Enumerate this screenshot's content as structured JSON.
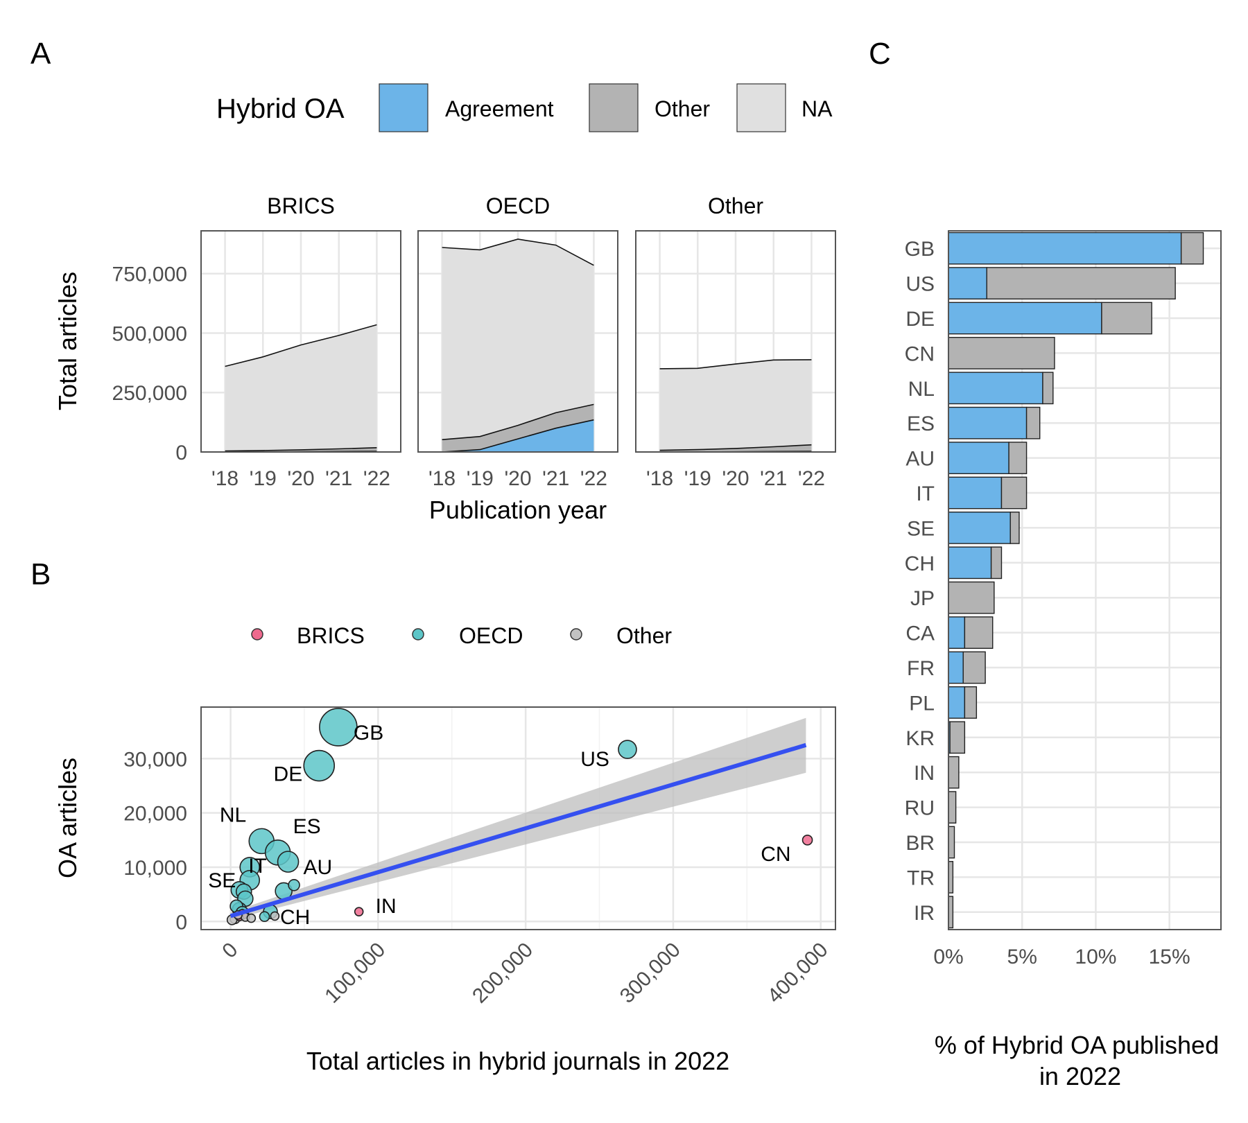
{
  "panels": {
    "a": "A",
    "b": "B",
    "c": "C"
  },
  "colors": {
    "agreement": "#6cb4e8",
    "other_oa": "#b3b3b3",
    "na": "#e0e0e0",
    "brics": "#ee6a8e",
    "oecd": "#5dc6c8",
    "other_country": "#c2c2c2",
    "trend": "#3550f0",
    "ribbon": "#bdbdbd"
  },
  "chart_data": [
    {
      "id": "A",
      "type": "area",
      "legend": {
        "title": "Hybrid OA",
        "entries": [
          "Agreement",
          "Other",
          "NA"
        ],
        "placement": "top"
      },
      "facets": [
        "BRICS",
        "OECD",
        "Other"
      ],
      "x": [
        2018,
        2019,
        2020,
        2021,
        2022
      ],
      "xticklabels": [
        "'18",
        "'19",
        "'20",
        "'21",
        "'22"
      ],
      "xlabel": "Publication year",
      "ylabel": "Total articles",
      "ylim": [
        0,
        930000
      ],
      "yticks": [
        0,
        250000,
        500000,
        750000
      ],
      "yticklabels": [
        "0",
        "250,000",
        "500,000",
        "750,000"
      ],
      "grid": true,
      "stacks": {
        "BRICS": {
          "agreement": [
            0,
            0,
            1000,
            2000,
            3000
          ],
          "other": [
            4000,
            6000,
            8000,
            11000,
            15000
          ],
          "na": [
            356000,
            394000,
            441000,
            477000,
            517000
          ]
        },
        "OECD": {
          "agreement": [
            0,
            10000,
            55000,
            100000,
            135000
          ],
          "other": [
            52000,
            55000,
            57000,
            65000,
            65000
          ],
          "na": [
            808000,
            785000,
            783000,
            705000,
            585000
          ]
        },
        "Other": {
          "agreement": [
            0,
            0,
            1000,
            2000,
            3000
          ],
          "other": [
            7000,
            10000,
            14000,
            20000,
            27000
          ],
          "na": [
            343000,
            342000,
            355000,
            365000,
            358000
          ]
        }
      }
    },
    {
      "id": "B",
      "type": "scatter",
      "legend": {
        "entries": [
          "BRICS",
          "OECD",
          "Other"
        ],
        "placement": "top"
      },
      "xlabel": "Total articles in hybrid journals in 2022",
      "ylabel": "OA articles",
      "xlim": [
        -20000,
        410000
      ],
      "ylim": [
        -1500,
        39500
      ],
      "xticks": [
        0,
        100000,
        200000,
        300000,
        400000
      ],
      "xticklabels": [
        "0",
        "100,000",
        "200,000",
        "300,000",
        "400,000"
      ],
      "yticks": [
        0,
        10000,
        20000,
        30000
      ],
      "yticklabels": [
        "0",
        "10,000",
        "20,000",
        "30,000"
      ],
      "grid": true,
      "points": [
        {
          "label": "GB",
          "group": "OECD",
          "x": 73000,
          "y": 35800,
          "r": 27
        },
        {
          "label": "US",
          "group": "OECD",
          "x": 269000,
          "y": 31700,
          "r": 13
        },
        {
          "label": "DE",
          "group": "OECD",
          "x": 60000,
          "y": 28700,
          "r": 22
        },
        {
          "label": "NL",
          "group": "OECD",
          "x": 21000,
          "y": 14800,
          "r": 18
        },
        {
          "label": "ES",
          "group": "OECD",
          "x": 32000,
          "y": 12700,
          "r": 18
        },
        {
          "label": "AU",
          "group": "OECD",
          "x": 39000,
          "y": 11000,
          "r": 15
        },
        {
          "label": "IT",
          "group": "OECD",
          "x": 13000,
          "y": 10000,
          "r": 14
        },
        {
          "label": "SE",
          "group": "OECD",
          "x": 13000,
          "y": 7600,
          "r": 14
        },
        {
          "label": "CH",
          "group": "OECD",
          "x": 27000,
          "y": 1800,
          "r": 10
        },
        {
          "label": "CN",
          "group": "BRICS",
          "x": 391000,
          "y": 15000,
          "r": 7
        },
        {
          "label": "IN",
          "group": "BRICS",
          "x": 87000,
          "y": 1800,
          "r": 6
        },
        {
          "label": "",
          "group": "OECD",
          "x": 36000,
          "y": 5600,
          "r": 12
        },
        {
          "label": "",
          "group": "OECD",
          "x": 43000,
          "y": 6700,
          "r": 8
        },
        {
          "label": "",
          "group": "OECD",
          "x": 6000,
          "y": 5800,
          "r": 12
        },
        {
          "label": "",
          "group": "OECD",
          "x": 9000,
          "y": 5500,
          "r": 11
        },
        {
          "label": "",
          "group": "OECD",
          "x": 10000,
          "y": 4200,
          "r": 11
        },
        {
          "label": "",
          "group": "OECD",
          "x": 4000,
          "y": 2800,
          "r": 9
        },
        {
          "label": "",
          "group": "OECD",
          "x": 6000,
          "y": 2200,
          "r": 10
        },
        {
          "label": "",
          "group": "OECD",
          "x": 8000,
          "y": 1600,
          "r": 9
        },
        {
          "label": "",
          "group": "OECD",
          "x": 23000,
          "y": 900,
          "r": 7
        },
        {
          "label": "",
          "group": "BRICS",
          "x": 8000,
          "y": 1300,
          "r": 7
        },
        {
          "label": "",
          "group": "BRICS",
          "x": 6000,
          "y": 900,
          "r": 6
        },
        {
          "label": "",
          "group": "Other",
          "x": 3000,
          "y": 500,
          "r": 7
        },
        {
          "label": "",
          "group": "Other",
          "x": 1000,
          "y": 300,
          "r": 7
        },
        {
          "label": "",
          "group": "Other",
          "x": 10000,
          "y": 800,
          "r": 6
        },
        {
          "label": "",
          "group": "Other",
          "x": 14000,
          "y": 600,
          "r": 6
        },
        {
          "label": "",
          "group": "Other",
          "x": 30000,
          "y": 1000,
          "r": 6
        },
        {
          "label": "",
          "group": "Other",
          "x": 5000,
          "y": 1200,
          "r": 6
        }
      ],
      "trend": {
        "x": [
          0,
          390000
        ],
        "y": [
          1000,
          32500
        ],
        "ci_low": [
          300,
          27400
        ],
        "ci_high": [
          1700,
          37500
        ]
      }
    },
    {
      "id": "C",
      "type": "bar",
      "orientation": "horizontal",
      "xlabel": "% of Hybrid OA published in 2022",
      "xlim": [
        0,
        18.5
      ],
      "xticks": [
        0,
        5,
        10,
        15
      ],
      "xticklabels": [
        "0%",
        "5%",
        "10%",
        "15%"
      ],
      "grid": true,
      "categories": [
        "GB",
        "US",
        "DE",
        "CN",
        "NL",
        "ES",
        "AU",
        "IT",
        "SE",
        "CH",
        "JP",
        "CA",
        "FR",
        "PL",
        "KR",
        "IN",
        "RU",
        "BR",
        "TR",
        "IR"
      ],
      "series": [
        {
          "name": "Agreement",
          "values": [
            15.8,
            2.6,
            10.4,
            0.0,
            6.4,
            5.3,
            4.1,
            3.6,
            4.2,
            2.9,
            0.0,
            1.1,
            1.0,
            1.1,
            0.1,
            0.0,
            0.0,
            0.0,
            0.0,
            0.0
          ]
        },
        {
          "name": "Other",
          "values": [
            1.5,
            12.8,
            3.4,
            7.2,
            0.7,
            0.9,
            1.2,
            1.7,
            0.6,
            0.7,
            3.1,
            1.9,
            1.5,
            0.8,
            1.0,
            0.7,
            0.5,
            0.4,
            0.3,
            0.3
          ]
        }
      ]
    }
  ]
}
